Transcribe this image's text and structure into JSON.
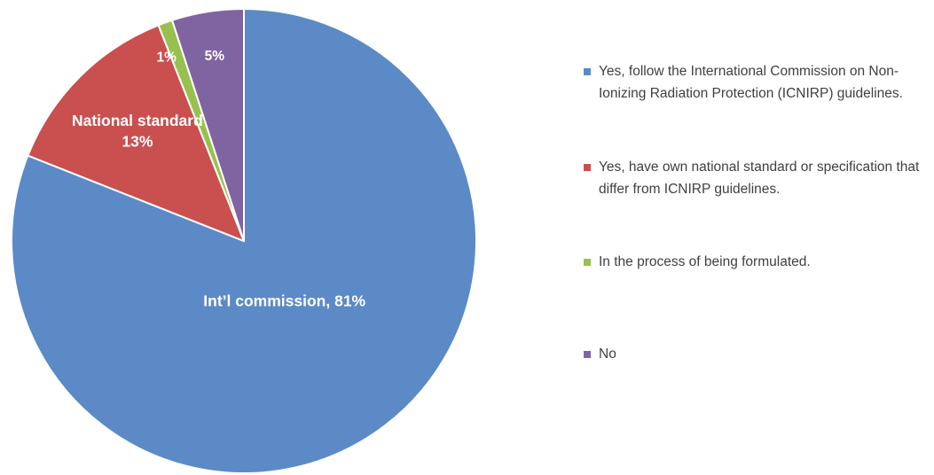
{
  "chart_data": {
    "type": "pie",
    "start_angle_deg": 0,
    "direction": "clockwise",
    "slices": [
      {
        "legend": "Yes, follow the International Commission on Non-Ionizing Radiation Protection (ICNIRP) guidelines.",
        "label": "Int’l commission, 81%",
        "value": 81,
        "color": "#5b8ac6"
      },
      {
        "legend": "Yes, have own national standard or specification that differ from ICNIRP guidelines.",
        "label": [
          "National standard",
          "13%"
        ],
        "value": 13,
        "color": "#c9504e"
      },
      {
        "legend": "In the process of being formulated.",
        "label": "1%",
        "value": 1,
        "color": "#99c04f"
      },
      {
        "legend": "No",
        "label": "5%",
        "value": 5,
        "color": "#8064a2"
      }
    ],
    "legend_position": "right"
  }
}
